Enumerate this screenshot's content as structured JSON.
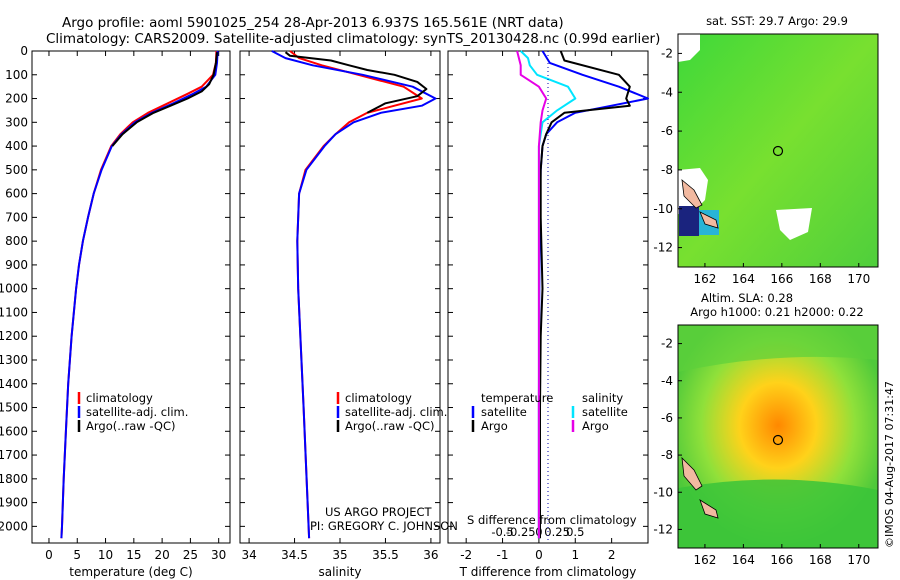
{
  "title_line1": "Argo profile: aoml 5901025_254 28-Apr-2013 6.937S 165.561E (NRT data)",
  "title_line2": "Climatology: CARS2009. Satellite-adjusted climatology: synTS_20130428.nc (0.99d earlier)",
  "credit_line1": "US ARGO PROJECT",
  "credit_line2": "PI: GREGORY C. JOHNSON",
  "side_stamp": "©IMOS 04-Aug-2017 07:31:47",
  "colors": {
    "climatology": "#ff0000",
    "satellite": "#0000ff",
    "argo": "#000000",
    "sat_salt": "#00e5ff",
    "argo_salt": "#e600e6"
  },
  "chart_data": [
    {
      "type": "line",
      "name": "temperature",
      "xlabel": "temperature (deg C)",
      "ylabel": "",
      "xlim": [
        -3,
        32
      ],
      "ylim": [
        2070,
        0
      ],
      "xticks": [
        "0",
        "5",
        "10",
        "15",
        "20",
        "25",
        "30"
      ],
      "xtick_values": [
        0,
        5,
        10,
        15,
        20,
        25,
        30
      ],
      "yticks": [
        "0",
        "100",
        "200",
        "300",
        "400",
        "500",
        "600",
        "700",
        "800",
        "900",
        "1000",
        "1100",
        "1200",
        "1300",
        "1400",
        "1500",
        "1600",
        "1700",
        "1800",
        "1900",
        "2000"
      ],
      "ytick_values": [
        0,
        100,
        200,
        300,
        400,
        500,
        600,
        700,
        800,
        900,
        1000,
        1100,
        1200,
        1300,
        1400,
        1500,
        1600,
        1700,
        1800,
        1900,
        2000
      ],
      "legend": [
        "climatology",
        "satellite-adj. clim.",
        "Argo(..raw -QC)"
      ],
      "series": [
        {
          "name": "climatology",
          "depth": [
            0,
            50,
            100,
            150,
            180,
            220,
            260,
            300,
            350,
            400,
            500,
            600,
            700,
            800,
            900,
            1000,
            1200,
            1400,
            1600,
            1800,
            2000,
            2050
          ],
          "values": [
            29.6,
            29.5,
            29,
            27,
            24.5,
            21,
            17.5,
            14.8,
            12.6,
            11,
            9.2,
            7.9,
            6.9,
            6,
            5.3,
            4.8,
            4,
            3.4,
            3,
            2.6,
            2.3,
            2.2
          ]
        },
        {
          "name": "satellite-adj. clim.",
          "depth": [
            0,
            50,
            100,
            150,
            180,
            220,
            260,
            300,
            350,
            400,
            500,
            600,
            700,
            800,
            900,
            1000,
            1200,
            1400,
            1600,
            1800,
            2000,
            2050
          ],
          "values": [
            29.8,
            29.7,
            29.4,
            27.8,
            25.5,
            22,
            18.2,
            15.2,
            12.8,
            11.1,
            9.3,
            7.9,
            6.9,
            6,
            5.3,
            4.8,
            4,
            3.4,
            3,
            2.6,
            2.3,
            2.2
          ]
        },
        {
          "name": "Argo(..raw -QC)",
          "depth": [
            5,
            50,
            100,
            140,
            170,
            200,
            230,
            260,
            300,
            350,
            400
          ],
          "values": [
            29.7,
            29.5,
            29.1,
            28.3,
            27,
            24.5,
            21.5,
            18.5,
            15.5,
            13,
            11.2
          ]
        }
      ]
    },
    {
      "type": "line",
      "name": "salinity",
      "xlabel": "salinity",
      "ylabel": "",
      "xlim": [
        33.9,
        36.1
      ],
      "ylim": [
        2070,
        0
      ],
      "xticks": [
        "34",
        "34.5",
        "35",
        "35.5",
        "36"
      ],
      "xtick_values": [
        34,
        34.5,
        35,
        35.5,
        36
      ],
      "legend": [
        "climatology",
        "satellite-adj. clim.",
        "Argo(..raw -QC)"
      ],
      "series": [
        {
          "name": "climatology",
          "depth": [
            0,
            30,
            60,
            100,
            150,
            200,
            230,
            260,
            300,
            350,
            400,
            500,
            600,
            800,
            1000,
            1500,
            2050
          ],
          "values": [
            34.45,
            34.55,
            34.8,
            35.2,
            35.7,
            35.9,
            35.6,
            35.3,
            35.1,
            34.95,
            34.82,
            34.62,
            34.55,
            34.53,
            34.54,
            34.6,
            34.66
          ]
        },
        {
          "name": "satellite-adj. clim.",
          "depth": [
            0,
            30,
            60,
            100,
            150,
            200,
            230,
            260,
            300,
            350,
            400,
            500,
            600,
            800,
            1000,
            1500,
            2050
          ],
          "values": [
            34.25,
            34.4,
            34.7,
            35.25,
            35.8,
            36.05,
            35.9,
            35.45,
            35.15,
            34.95,
            34.83,
            34.63,
            34.55,
            34.53,
            34.54,
            34.6,
            34.66
          ]
        },
        {
          "name": "Argo(..raw -QC)",
          "depth": [
            5,
            20,
            40,
            60,
            80,
            100,
            130,
            160,
            190,
            220,
            260
          ],
          "values": [
            34.4,
            34.45,
            34.9,
            35.1,
            35.3,
            35.6,
            35.85,
            35.95,
            35.85,
            35.5,
            35.3
          ]
        }
      ]
    },
    {
      "type": "line",
      "name": "difference",
      "xlabel_top": "S difference from climatology",
      "xlabel": "T difference from climatology",
      "xlim": [
        -2.5,
        3.0
      ],
      "ylim": [
        2070,
        0
      ],
      "xticks": [
        "-2",
        "-1",
        "0",
        "1",
        "2"
      ],
      "xtick_values": [
        -2,
        -1,
        0,
        1,
        2
      ],
      "xticks_top": [
        "-0.5",
        "-0.25",
        "0",
        "0.25",
        "0.5"
      ],
      "xtick_top_values": [
        -1,
        -0.5,
        0,
        0.5,
        1
      ],
      "legend_left_title": "temperature",
      "legend_right_title": "salinity",
      "legend": [
        "satellite",
        "Argo",
        "satellite",
        "Argo"
      ],
      "series": [
        {
          "name": "T satellite",
          "depth": [
            0,
            50,
            100,
            150,
            200,
            260,
            300,
            350,
            400,
            500,
            700,
            1000,
            1500,
            2050
          ],
          "values": [
            0.1,
            0.3,
            1.2,
            2.2,
            3.0,
            1.0,
            0.5,
            0.2,
            0.1,
            0.05,
            0.02,
            0.01,
            0,
            0
          ]
        },
        {
          "name": "T Argo",
          "depth": [
            0,
            40,
            100,
            150,
            200,
            230,
            260,
            300,
            350,
            400,
            500,
            700,
            1000,
            1200,
            1500,
            2050
          ],
          "values": [
            0.6,
            0.7,
            2.2,
            2.5,
            2.4,
            2.5,
            0.7,
            0.35,
            0.2,
            0.1,
            0.05,
            0.05,
            0.1,
            0.05,
            0.03,
            0.03
          ]
        },
        {
          "name": "S satellite",
          "depth": [
            0,
            30,
            60,
            100,
            150,
            200,
            250,
            300,
            400,
            1000,
            2050
          ],
          "values": [
            -0.5,
            -0.3,
            -0.25,
            -0.05,
            0.8,
            1.0,
            0.5,
            0.1,
            0,
            0,
            0
          ]
        },
        {
          "name": "S Argo",
          "depth": [
            0,
            30,
            60,
            100,
            150,
            200,
            250,
            300,
            400,
            1000,
            2050
          ],
          "values": [
            -0.6,
            -0.55,
            -0.5,
            -0.5,
            0.0,
            0.2,
            0.1,
            0.05,
            0,
            0,
            0
          ]
        }
      ]
    },
    {
      "type": "heatmap",
      "name": "sst-map",
      "title": "sat. SST: 29.7 Argo: 29.9",
      "xticks": [
        "162",
        "164",
        "166",
        "168",
        "170"
      ],
      "xtick_values": [
        162,
        164,
        166,
        168,
        170
      ],
      "yticks": [
        "-2",
        "-4",
        "-6",
        "-8",
        "-10",
        "-12"
      ],
      "ytick_values": [
        -2,
        -4,
        -6,
        -8,
        -10,
        -12
      ],
      "xlim": [
        160.6,
        171
      ],
      "ylim": [
        -13,
        -1
      ],
      "profile_lon": 165.561,
      "profile_lat": -6.937
    },
    {
      "type": "heatmap",
      "name": "sla-map",
      "title_line1": "Altim. SLA: 0.28",
      "title_line2": "Argo h1000: 0.21 h2000: 0.22",
      "xticks": [
        "162",
        "164",
        "166",
        "168",
        "170"
      ],
      "xtick_values": [
        162,
        164,
        166,
        168,
        170
      ],
      "yticks": [
        "-2",
        "-4",
        "-6",
        "-8",
        "-10",
        "-12"
      ],
      "ytick_values": [
        -2,
        -4,
        -6,
        -8,
        -10,
        -12
      ],
      "xlim": [
        160.6,
        171
      ],
      "ylim": [
        -13,
        -1
      ],
      "profile_lon": 165.561,
      "profile_lat": -6.937
    }
  ]
}
